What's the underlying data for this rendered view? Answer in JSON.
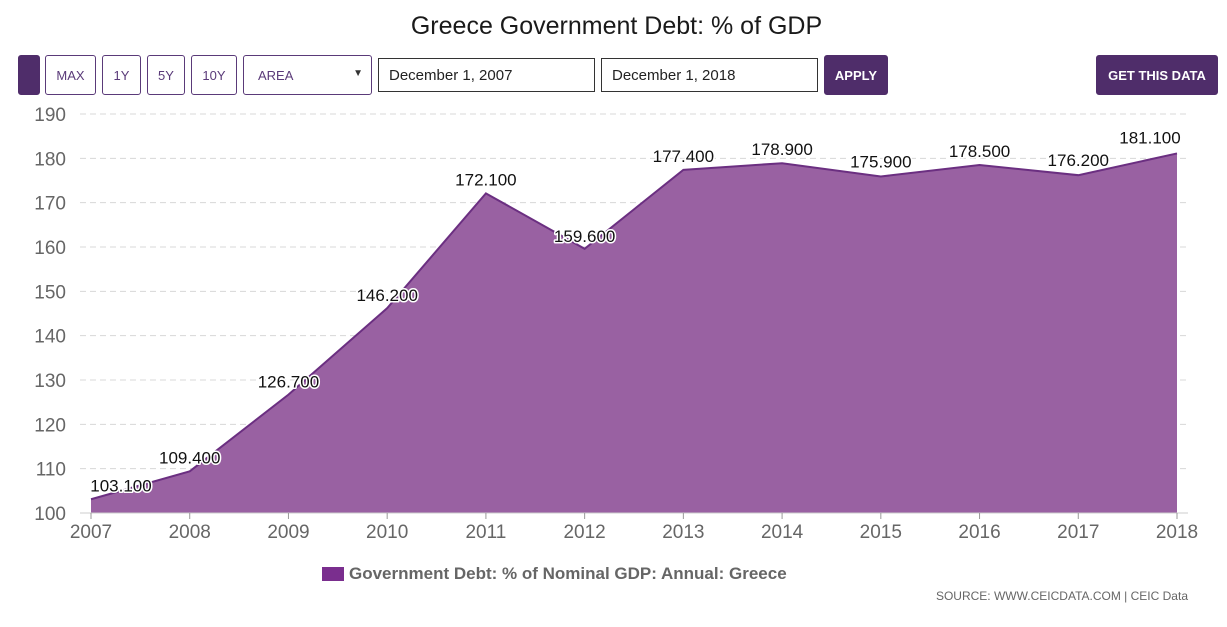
{
  "toolbar": {
    "buttons": {
      "max": "MAX",
      "y1": "1Y",
      "y5": "5Y",
      "y10": "10Y"
    },
    "chart_type_select": "AREA",
    "date_from": "December 1, 2007",
    "date_to": "December 1, 2018",
    "apply_label": "APPLY",
    "get_data_label": "GET THIS DATA"
  },
  "colors": {
    "accent": "#4f2d6a",
    "area_fill": "#9961a2",
    "area_line": "#6b2f81",
    "legend_swatch": "#7a2e8e"
  },
  "source_text": "SOURCE: WWW.CEICDATA.COM | CEIC Data",
  "chart_data": {
    "type": "area",
    "title": "Greece Government Debt: % of GDP",
    "xlabel": "",
    "ylabel": "",
    "x": [
      "2007",
      "2008",
      "2009",
      "2010",
      "2011",
      "2012",
      "2013",
      "2014",
      "2015",
      "2016",
      "2017",
      "2018"
    ],
    "series": [
      {
        "name": "Government Debt: % of Nominal GDP: Annual: Greece",
        "values": [
          103.1,
          109.4,
          126.7,
          146.2,
          172.1,
          159.6,
          177.4,
          178.9,
          175.9,
          178.5,
          176.2,
          181.1
        ],
        "labels": [
          "103.100",
          "109.400",
          "126.700",
          "146.200",
          "172.100",
          "159.600",
          "177.400",
          "178.900",
          "175.900",
          "178.500",
          "176.200",
          "181.100"
        ]
      }
    ],
    "yticks": [
      "100",
      "110",
      "120",
      "130",
      "140",
      "150",
      "160",
      "170",
      "180",
      "190"
    ],
    "ylim": [
      100,
      190
    ],
    "grid": true,
    "legend_position": "bottom"
  }
}
